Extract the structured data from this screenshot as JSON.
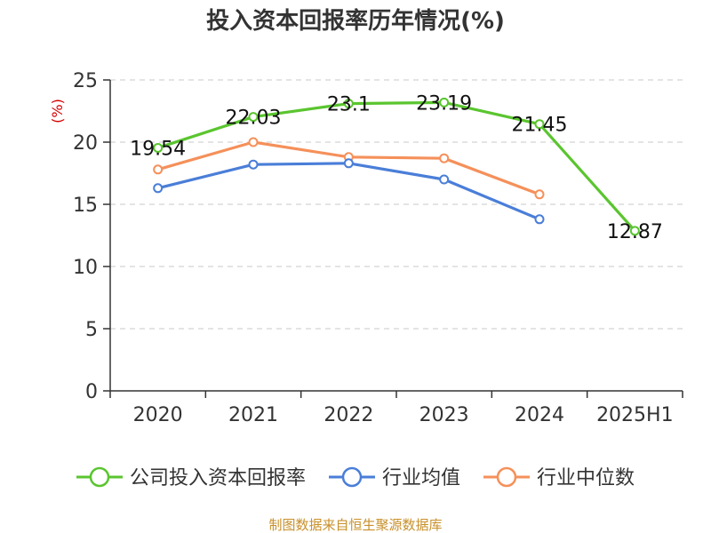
{
  "chart_data": {
    "type": "line",
    "title": "投入资本回报率历年情况(%)",
    "ylabel": "(%)",
    "xlabel": "",
    "categories": [
      "2020",
      "2021",
      "2022",
      "2023",
      "2024",
      "2025H1"
    ],
    "ylim": [
      0,
      25
    ],
    "yticks": [
      "0",
      "5",
      "10",
      "15",
      "20",
      "25"
    ],
    "grid": true,
    "legend_position": "bottom",
    "series": [
      {
        "name": "公司投入资本回报率",
        "color": "#5ac52f",
        "values": [
          19.54,
          22.03,
          23.1,
          23.19,
          21.45,
          12.87
        ],
        "labels": [
          "19.54",
          "22.03",
          "23.1",
          "23.19",
          "21.45",
          "12.87"
        ]
      },
      {
        "name": "行业均值",
        "color": "#4a7ed8",
        "values": [
          16.3,
          18.2,
          18.3,
          17.0,
          13.8,
          null
        ],
        "labels": null
      },
      {
        "name": "行业中位数",
        "color": "#f5905a",
        "values": [
          17.8,
          20.0,
          18.8,
          18.7,
          15.8,
          null
        ],
        "labels": null
      }
    ]
  },
  "source": "制图数据来自恒生聚源数据库"
}
